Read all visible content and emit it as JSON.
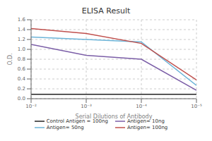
{
  "chart_data": {
    "type": "line",
    "title": "ELISA Result",
    "xlabel": "Serial Dilutions of Antibody",
    "ylabel": "O.D.",
    "x": [
      0.01,
      0.001,
      0.0001,
      1e-05
    ],
    "xlim": [
      0.01,
      1e-05
    ],
    "xticks": [
      {
        "value": 0.01,
        "label": "10⁻²"
      },
      {
        "value": 0.001,
        "label": "10⁻³"
      },
      {
        "value": 0.0001,
        "label": "10⁻⁴"
      },
      {
        "value": 1e-05,
        "label": "10⁻⁵"
      }
    ],
    "ylim": [
      0,
      1.6
    ],
    "yticks": [
      {
        "value": 0,
        "label": "0.0"
      },
      0.2,
      0.4,
      0.6,
      0.8,
      {
        "value": 1.0,
        "label": "1.0"
      },
      1.2,
      1.4,
      1.6
    ],
    "log": "x",
    "grid": true,
    "legend": "bottom",
    "series": [
      {
        "name": "Control Antigen = 100ng",
        "color": "#222222",
        "values": [
          0.09,
          0.09,
          0.09,
          0.09
        ]
      },
      {
        "name": "Antigen= 10ng",
        "color": "#7B5EA7",
        "values": [
          1.1,
          0.88,
          0.8,
          0.17
        ]
      },
      {
        "name": "Antigen= 50ng",
        "color": "#6CB4D8",
        "values": [
          1.25,
          1.2,
          1.15,
          0.27
        ]
      },
      {
        "name": "Antigen= 100ng",
        "color": "#C0504D",
        "values": [
          1.42,
          1.32,
          1.12,
          0.38
        ]
      }
    ]
  }
}
